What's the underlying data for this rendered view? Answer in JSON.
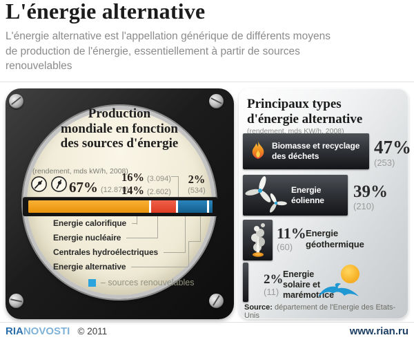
{
  "header": {
    "title": "L'énergie alternative",
    "subtitle": "L'énergie alternative est l'appellation générique de différents moyens\nde production de l'énergie, essentiellement à partir de sources\nrenouvelables"
  },
  "gauge_panel": {
    "title": "Production\nmondiale en fonction\ndes sources d'énergie",
    "unit_note": "(rendement, mds kW/h, 2008)",
    "readings": {
      "calorifique": {
        "pct": "67%",
        "value": "(12.870)"
      },
      "hydro": {
        "pct": "16%",
        "value": "(3.094)"
      },
      "nucleaire": {
        "pct": "14%",
        "value": "(2.602)"
      },
      "alternative": {
        "pct": "2%",
        "value": "(534)"
      }
    },
    "bar_labels": [
      "Energie calorifique",
      "Energie nucléaire",
      "Centrales hydroélectriques",
      "Energie alternative"
    ],
    "legend": "– sources renouvelables"
  },
  "types_panel": {
    "title": "Principaux types\nd'énergie alternative",
    "unit_note": "(rendement, mds KW/h, 2008)",
    "items": [
      {
        "label": "Biomasse et recyclage\ndes déchets",
        "pct": "47%",
        "value": "(253)",
        "icon": "flame-icon"
      },
      {
        "label": "Energie\néolienne",
        "pct": "39%",
        "value": "(210)",
        "icon": "wind-turbine-icon"
      },
      {
        "label": "Energie\ngéothermique",
        "pct": "11%",
        "value": "(60)",
        "icon": "geyser-icon"
      },
      {
        "label": "Energie\nsolaire et\nmarémotrice",
        "pct": "2%",
        "value": "(11)",
        "icon": "sun-wave-icon"
      }
    ],
    "source_label": "Source:",
    "source_text": " département de l'Energie des Etats-Unis"
  },
  "footer": {
    "brand_ria": "RIA",
    "brand_novosti": "NOVOSTI",
    "copyright": "© 2011",
    "site": "www.rian.ru"
  },
  "colors": {
    "calorifique_orange": "#f1a11e",
    "nucleaire_red": "#e8503a",
    "hydro_blue": "#1e79ae",
    "legend_blue": "#2ba3dc",
    "brand_blue_dark": "#2b6da8",
    "brand_blue_light": "#7fb2d6"
  },
  "chart_data": [
    {
      "type": "bar",
      "variant": "stacked-horizontal",
      "title": "Production mondiale en fonction des sources d'énergie",
      "unit": "rendement, mds kW/h, 2008",
      "categories": [
        "Energie calorifique",
        "Energie nucléaire",
        "Centrales hydroélectriques",
        "Energie alternative"
      ],
      "values_pct": [
        67,
        14,
        16,
        2
      ],
      "values_mds_kwh": [
        12870,
        2602,
        3094,
        534
      ],
      "colors": [
        "#f1a11e",
        "#e8503a",
        "#1e79ae",
        "#1e79ae"
      ],
      "legend": "– sources renouvelables",
      "legend_color": "#2ba3dc"
    },
    {
      "type": "bar",
      "variant": "horizontal-pictorial",
      "title": "Principaux types d'énergie alternative",
      "unit": "rendement, mds KW/h, 2008",
      "categories": [
        "Biomasse et recyclage des déchets",
        "Energie éolienne",
        "Energie géothermique",
        "Energie solaire et marémotrice"
      ],
      "values_pct": [
        47,
        39,
        11,
        2
      ],
      "values_mds_kwh": [
        253,
        210,
        60,
        11
      ],
      "bar_color": "#2e3236",
      "source": "département de l'Energie des Etats-Unis"
    }
  ]
}
